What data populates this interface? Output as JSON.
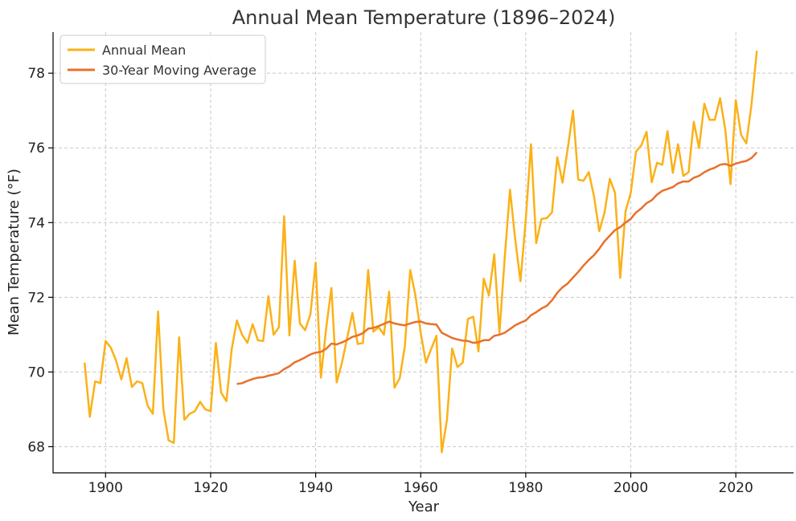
{
  "chart_data": {
    "type": "line",
    "title": "Annual Mean Temperature (1896–2024)",
    "xlabel": "Year",
    "ylabel": "Mean Temperature (°F)",
    "xlim": [
      1890,
      2031
    ],
    "ylim": [
      67.3,
      79.1
    ],
    "xticks": [
      1900,
      1920,
      1940,
      1960,
      1980,
      2000,
      2020
    ],
    "yticks": [
      68,
      70,
      72,
      74,
      76,
      78
    ],
    "grid": true,
    "legend_position": "top-left",
    "series": [
      {
        "name": "Annual Mean",
        "color": "#FBB117",
        "x": [
          1896,
          1897,
          1898,
          1899,
          1900,
          1901,
          1902,
          1903,
          1904,
          1905,
          1906,
          1907,
          1908,
          1909,
          1910,
          1911,
          1912,
          1913,
          1914,
          1915,
          1916,
          1917,
          1918,
          1919,
          1920,
          1921,
          1922,
          1923,
          1924,
          1925,
          1926,
          1927,
          1928,
          1929,
          1930,
          1931,
          1932,
          1933,
          1934,
          1935,
          1936,
          1937,
          1938,
          1939,
          1940,
          1941,
          1942,
          1943,
          1944,
          1945,
          1946,
          1947,
          1948,
          1949,
          1950,
          1951,
          1952,
          1953,
          1954,
          1955,
          1956,
          1957,
          1958,
          1959,
          1960,
          1961,
          1962,
          1963,
          1964,
          1965,
          1966,
          1967,
          1968,
          1969,
          1970,
          1971,
          1972,
          1973,
          1974,
          1975,
          1976,
          1977,
          1978,
          1979,
          1980,
          1981,
          1982,
          1983,
          1984,
          1985,
          1986,
          1987,
          1988,
          1989,
          1990,
          1991,
          1992,
          1993,
          1994,
          1995,
          1996,
          1997,
          1998,
          1999,
          2000,
          2001,
          2002,
          2003,
          2004,
          2005,
          2006,
          2007,
          2008,
          2009,
          2010,
          2011,
          2012,
          2013,
          2014,
          2015,
          2016,
          2017,
          2018,
          2019,
          2020,
          2021,
          2022,
          2023,
          2024
        ],
        "values": [
          70.25,
          68.8,
          69.75,
          69.7,
          70.83,
          70.65,
          70.3,
          69.8,
          70.37,
          69.6,
          69.75,
          69.7,
          69.1,
          68.88,
          71.62,
          69.0,
          68.17,
          68.1,
          70.93,
          68.72,
          68.88,
          68.95,
          69.2,
          69.0,
          68.95,
          70.78,
          69.45,
          69.22,
          70.6,
          71.38,
          71.0,
          70.78,
          71.28,
          70.85,
          70.83,
          72.03,
          71.0,
          71.2,
          74.17,
          70.98,
          72.98,
          71.3,
          71.12,
          71.55,
          72.93,
          69.85,
          71.18,
          72.25,
          69.72,
          70.25,
          70.92,
          71.58,
          70.75,
          70.78,
          72.73,
          71.08,
          71.2,
          71.0,
          72.15,
          69.58,
          69.83,
          70.7,
          72.73,
          72.05,
          71.05,
          70.25,
          70.62,
          70.97,
          67.85,
          68.72,
          70.63,
          70.13,
          70.25,
          71.42,
          71.48,
          70.55,
          72.5,
          72.05,
          73.15,
          71.05,
          73.05,
          74.88,
          73.55,
          72.43,
          74.08,
          76.1,
          73.45,
          74.1,
          74.12,
          74.27,
          75.75,
          75.07,
          75.98,
          77.0,
          75.15,
          75.12,
          75.35,
          74.7,
          73.77,
          74.27,
          75.17,
          74.8,
          72.52,
          74.3,
          74.8,
          75.9,
          76.07,
          76.43,
          75.08,
          75.6,
          75.55,
          76.45,
          75.33,
          76.1,
          75.25,
          75.35,
          76.7,
          76.0,
          77.18,
          76.75,
          76.75,
          77.33,
          76.48,
          75.03,
          77.28,
          76.35,
          76.12,
          77.17,
          78.6
        ]
      },
      {
        "name": "30-Year Moving Average",
        "color": "#E8702A",
        "x": [
          1925,
          1926,
          1927,
          1928,
          1929,
          1930,
          1931,
          1932,
          1933,
          1934,
          1935,
          1936,
          1937,
          1938,
          1939,
          1940,
          1941,
          1942,
          1943,
          1944,
          1945,
          1946,
          1947,
          1948,
          1949,
          1950,
          1951,
          1952,
          1953,
          1954,
          1955,
          1956,
          1957,
          1958,
          1959,
          1960,
          1961,
          1962,
          1963,
          1964,
          1965,
          1966,
          1967,
          1968,
          1969,
          1970,
          1971,
          1972,
          1973,
          1974,
          1975,
          1976,
          1977,
          1978,
          1979,
          1980,
          1981,
          1982,
          1983,
          1984,
          1985,
          1986,
          1987,
          1988,
          1989,
          1990,
          1991,
          1992,
          1993,
          1994,
          1995,
          1996,
          1997,
          1998,
          1999,
          2000,
          2001,
          2002,
          2003,
          2004,
          2005,
          2006,
          2007,
          2008,
          2009,
          2010,
          2011,
          2012,
          2013,
          2014,
          2015,
          2016,
          2017,
          2018,
          2019,
          2020,
          2021,
          2022,
          2023,
          2024
        ],
        "values": [
          69.68,
          69.7,
          69.76,
          69.81,
          69.85,
          69.86,
          69.9,
          69.93,
          69.97,
          70.08,
          70.15,
          70.26,
          70.32,
          70.39,
          70.47,
          70.52,
          70.54,
          70.62,
          70.76,
          70.74,
          70.79,
          70.86,
          70.94,
          70.98,
          71.04,
          71.16,
          71.18,
          71.23,
          71.29,
          71.35,
          71.3,
          71.27,
          71.25,
          71.3,
          71.34,
          71.35,
          71.3,
          71.28,
          71.27,
          71.05,
          70.98,
          70.91,
          70.87,
          70.84,
          70.83,
          70.78,
          70.8,
          70.85,
          70.85,
          70.97,
          71.0,
          71.05,
          71.15,
          71.25,
          71.32,
          71.38,
          71.52,
          71.6,
          71.7,
          71.77,
          71.92,
          72.12,
          72.27,
          72.37,
          72.53,
          72.68,
          72.85,
          73.0,
          73.13,
          73.3,
          73.5,
          73.65,
          73.8,
          73.88,
          74.0,
          74.1,
          74.27,
          74.38,
          74.52,
          74.6,
          74.75,
          74.85,
          74.9,
          74.95,
          75.05,
          75.1,
          75.1,
          75.2,
          75.25,
          75.35,
          75.42,
          75.47,
          75.55,
          75.57,
          75.52,
          75.58,
          75.62,
          75.65,
          75.73,
          75.88
        ]
      }
    ]
  }
}
